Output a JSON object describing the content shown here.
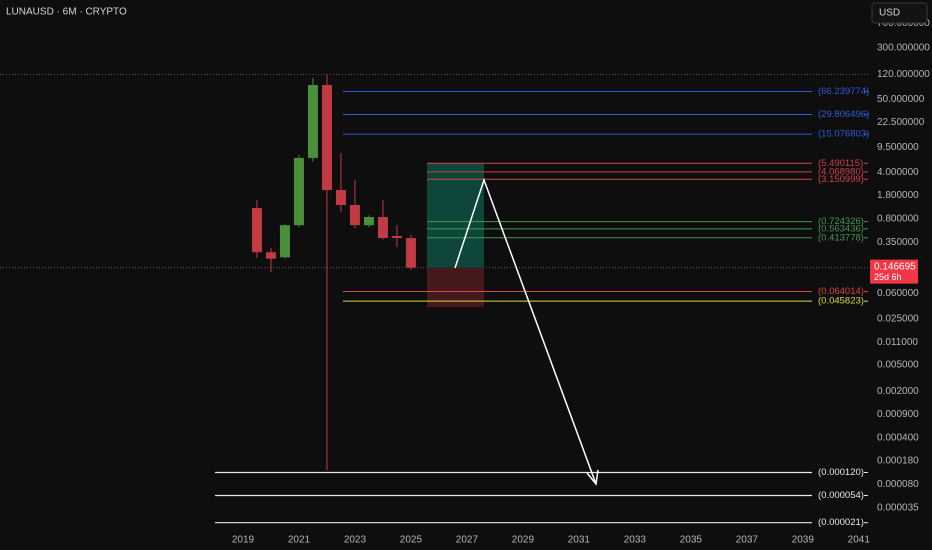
{
  "chart_data": {
    "type": "candlestick",
    "title": "LUNAUSD · 6M · CRYPTO",
    "currency": "USD",
    "log_scale": true,
    "x": [
      2019.5,
      2020,
      2020.5,
      2021,
      2021.5,
      2022,
      2022.5,
      2023,
      2023.5,
      2024,
      2024.5,
      2025
    ],
    "open": [
      1.16,
      0.25,
      0.21,
      0.64,
      6.6,
      83,
      2.17,
      1.29,
      0.64,
      0.85,
      0.44,
      0.41
    ],
    "high": [
      1.53,
      0.29,
      0.66,
      7.3,
      106,
      117,
      7.8,
      3.07,
      0.9,
      1.53,
      0.64,
      0.46
    ],
    "low": [
      0.205,
      0.126,
      0.2,
      0.6,
      5.8,
      0.00013,
      1.01,
      0.58,
      0.6,
      0.39,
      0.3,
      0.135
    ],
    "close": [
      0.25,
      0.2,
      0.64,
      6.6,
      83,
      2.17,
      1.29,
      0.64,
      0.85,
      0.41,
      0.41,
      0.146695
    ],
    "up_color": "#4a8f3c",
    "down_color": "#c23a44",
    "xlim": [
      2010.32,
      2041.4
    ],
    "xticks": [
      2019,
      2021,
      2023,
      2025,
      2027,
      2029,
      2031,
      2033,
      2035,
      2037,
      2039,
      2041
    ],
    "ylim": [
      1.37e-05,
      1585
    ],
    "yticks": [
      {
        "value": 700,
        "label": "700.000000"
      },
      {
        "value": 300,
        "label": "300.000000"
      },
      {
        "value": 120,
        "label": "120.000000"
      },
      {
        "value": 50,
        "label": "50.000000"
      },
      {
        "value": 22.5,
        "label": "22.500000"
      },
      {
        "value": 9.5,
        "label": "9.500000"
      },
      {
        "value": 4,
        "label": "4.000000"
      },
      {
        "value": 1.8,
        "label": "1.800000"
      },
      {
        "value": 0.8,
        "label": "0.800000"
      },
      {
        "value": 0.35,
        "label": "0.350000"
      },
      {
        "value": 0.06,
        "label": "0.060000"
      },
      {
        "value": 0.025,
        "label": "0.025000"
      },
      {
        "value": 0.011,
        "label": "0.011000"
      },
      {
        "value": 0.005,
        "label": "0.005000"
      },
      {
        "value": 0.002,
        "label": "0.002000"
      },
      {
        "value": 0.0009,
        "label": "0.000900"
      },
      {
        "value": 0.0004,
        "label": "0.000400"
      },
      {
        "value": 0.00018,
        "label": "0.000180"
      },
      {
        "value": 8e-05,
        "label": "0.000080"
      },
      {
        "value": 3.5e-05,
        "label": "0.000035"
      }
    ],
    "last_price": 0.146695,
    "countdown": "25d 6h",
    "last_price_color": "#f23645",
    "levels": [
      {
        "color": "#2f5bd9",
        "values": [
          66.239774,
          29.806496,
          15.076803
        ],
        "value_labels": [
          "(66.239774)",
          "(29.806496)",
          "(15.076803)"
        ]
      },
      {
        "color": "#d2424b",
        "values": [
          5.490115,
          4.06898,
          3.150999
        ],
        "value_labels": [
          "(5.490115)",
          "(4.068980)",
          "(3.150999)"
        ]
      },
      {
        "color": "#3c9a4e",
        "values": [
          0.724326,
          0.563436,
          0.413778
        ],
        "value_labels": [
          "(0.724326)",
          "(0.563436)",
          "(0.413778)"
        ]
      },
      {
        "color": "#e0434a",
        "values": [
          0.064014
        ],
        "value_labels": [
          "(0.064014)"
        ]
      },
      {
        "color": "#d8d84a",
        "values": [
          0.045823
        ],
        "value_labels": [
          "(0.045823)"
        ]
      },
      {
        "color": "#e8e8e8",
        "values": [
          0.00012,
          5.4e-05,
          2.1e-05
        ],
        "value_labels": [
          "(0.000120)",
          "(0.000054)",
          "(0.000021)"
        ]
      }
    ]
  }
}
